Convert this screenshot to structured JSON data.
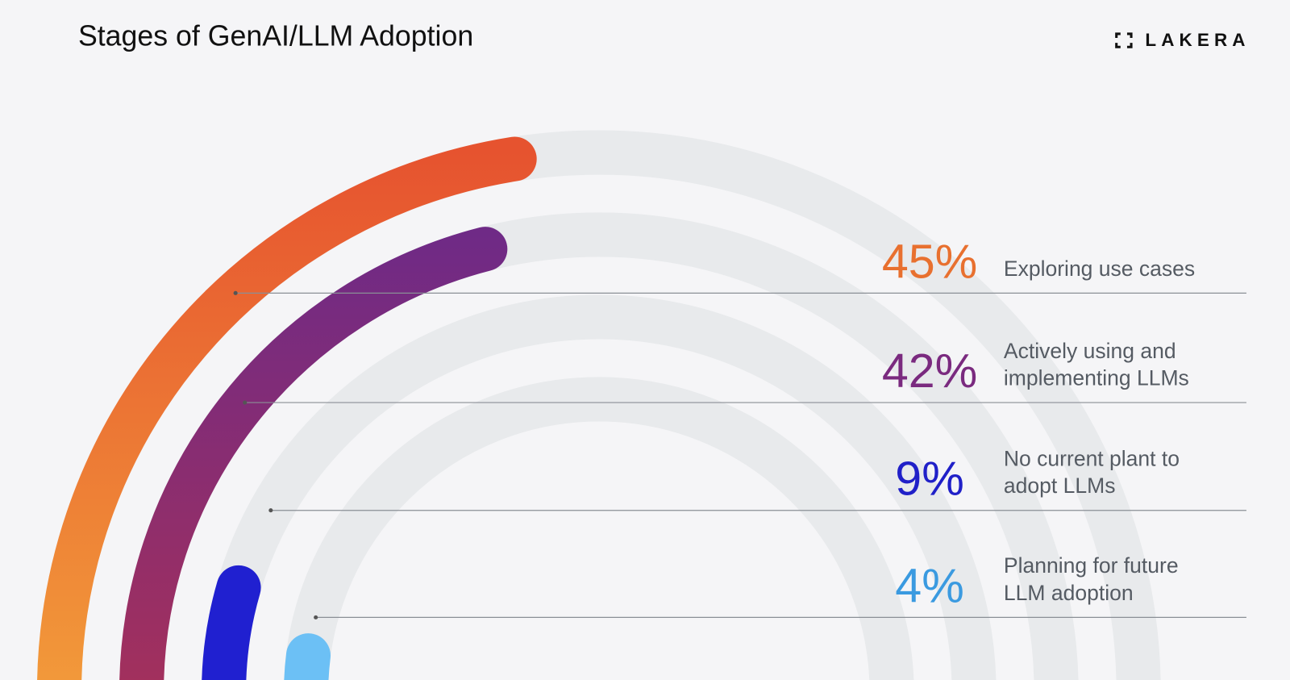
{
  "chart_data": {
    "type": "radial_bar",
    "title": "Stages of GenAI/LLM Adoption",
    "brand": "LAKERA",
    "categories": [
      [
        "Exploring use cases"
      ],
      [
        "Actively using and",
        "implementing LLMs"
      ],
      [
        "No current plant to",
        "adopt LLMs"
      ],
      [
        "Planning for future",
        "LLM adoption"
      ]
    ],
    "values": [
      45,
      42,
      9,
      4
    ],
    "value_labels": [
      "45%",
      "42%",
      "9%",
      "4%"
    ],
    "colors": [
      [
        "#f29a3a",
        "#e6532f"
      ],
      [
        "#a3305c",
        "#6f2a86"
      ],
      [
        "#2020d0",
        "#2020d0"
      ],
      [
        "#6cc0f5",
        "#6cc0f5"
      ]
    ],
    "label_colors": [
      "#e8702f",
      "#7a2a7f",
      "#2020c8",
      "#3a9ae0"
    ],
    "track_color": "#e8eaec"
  }
}
